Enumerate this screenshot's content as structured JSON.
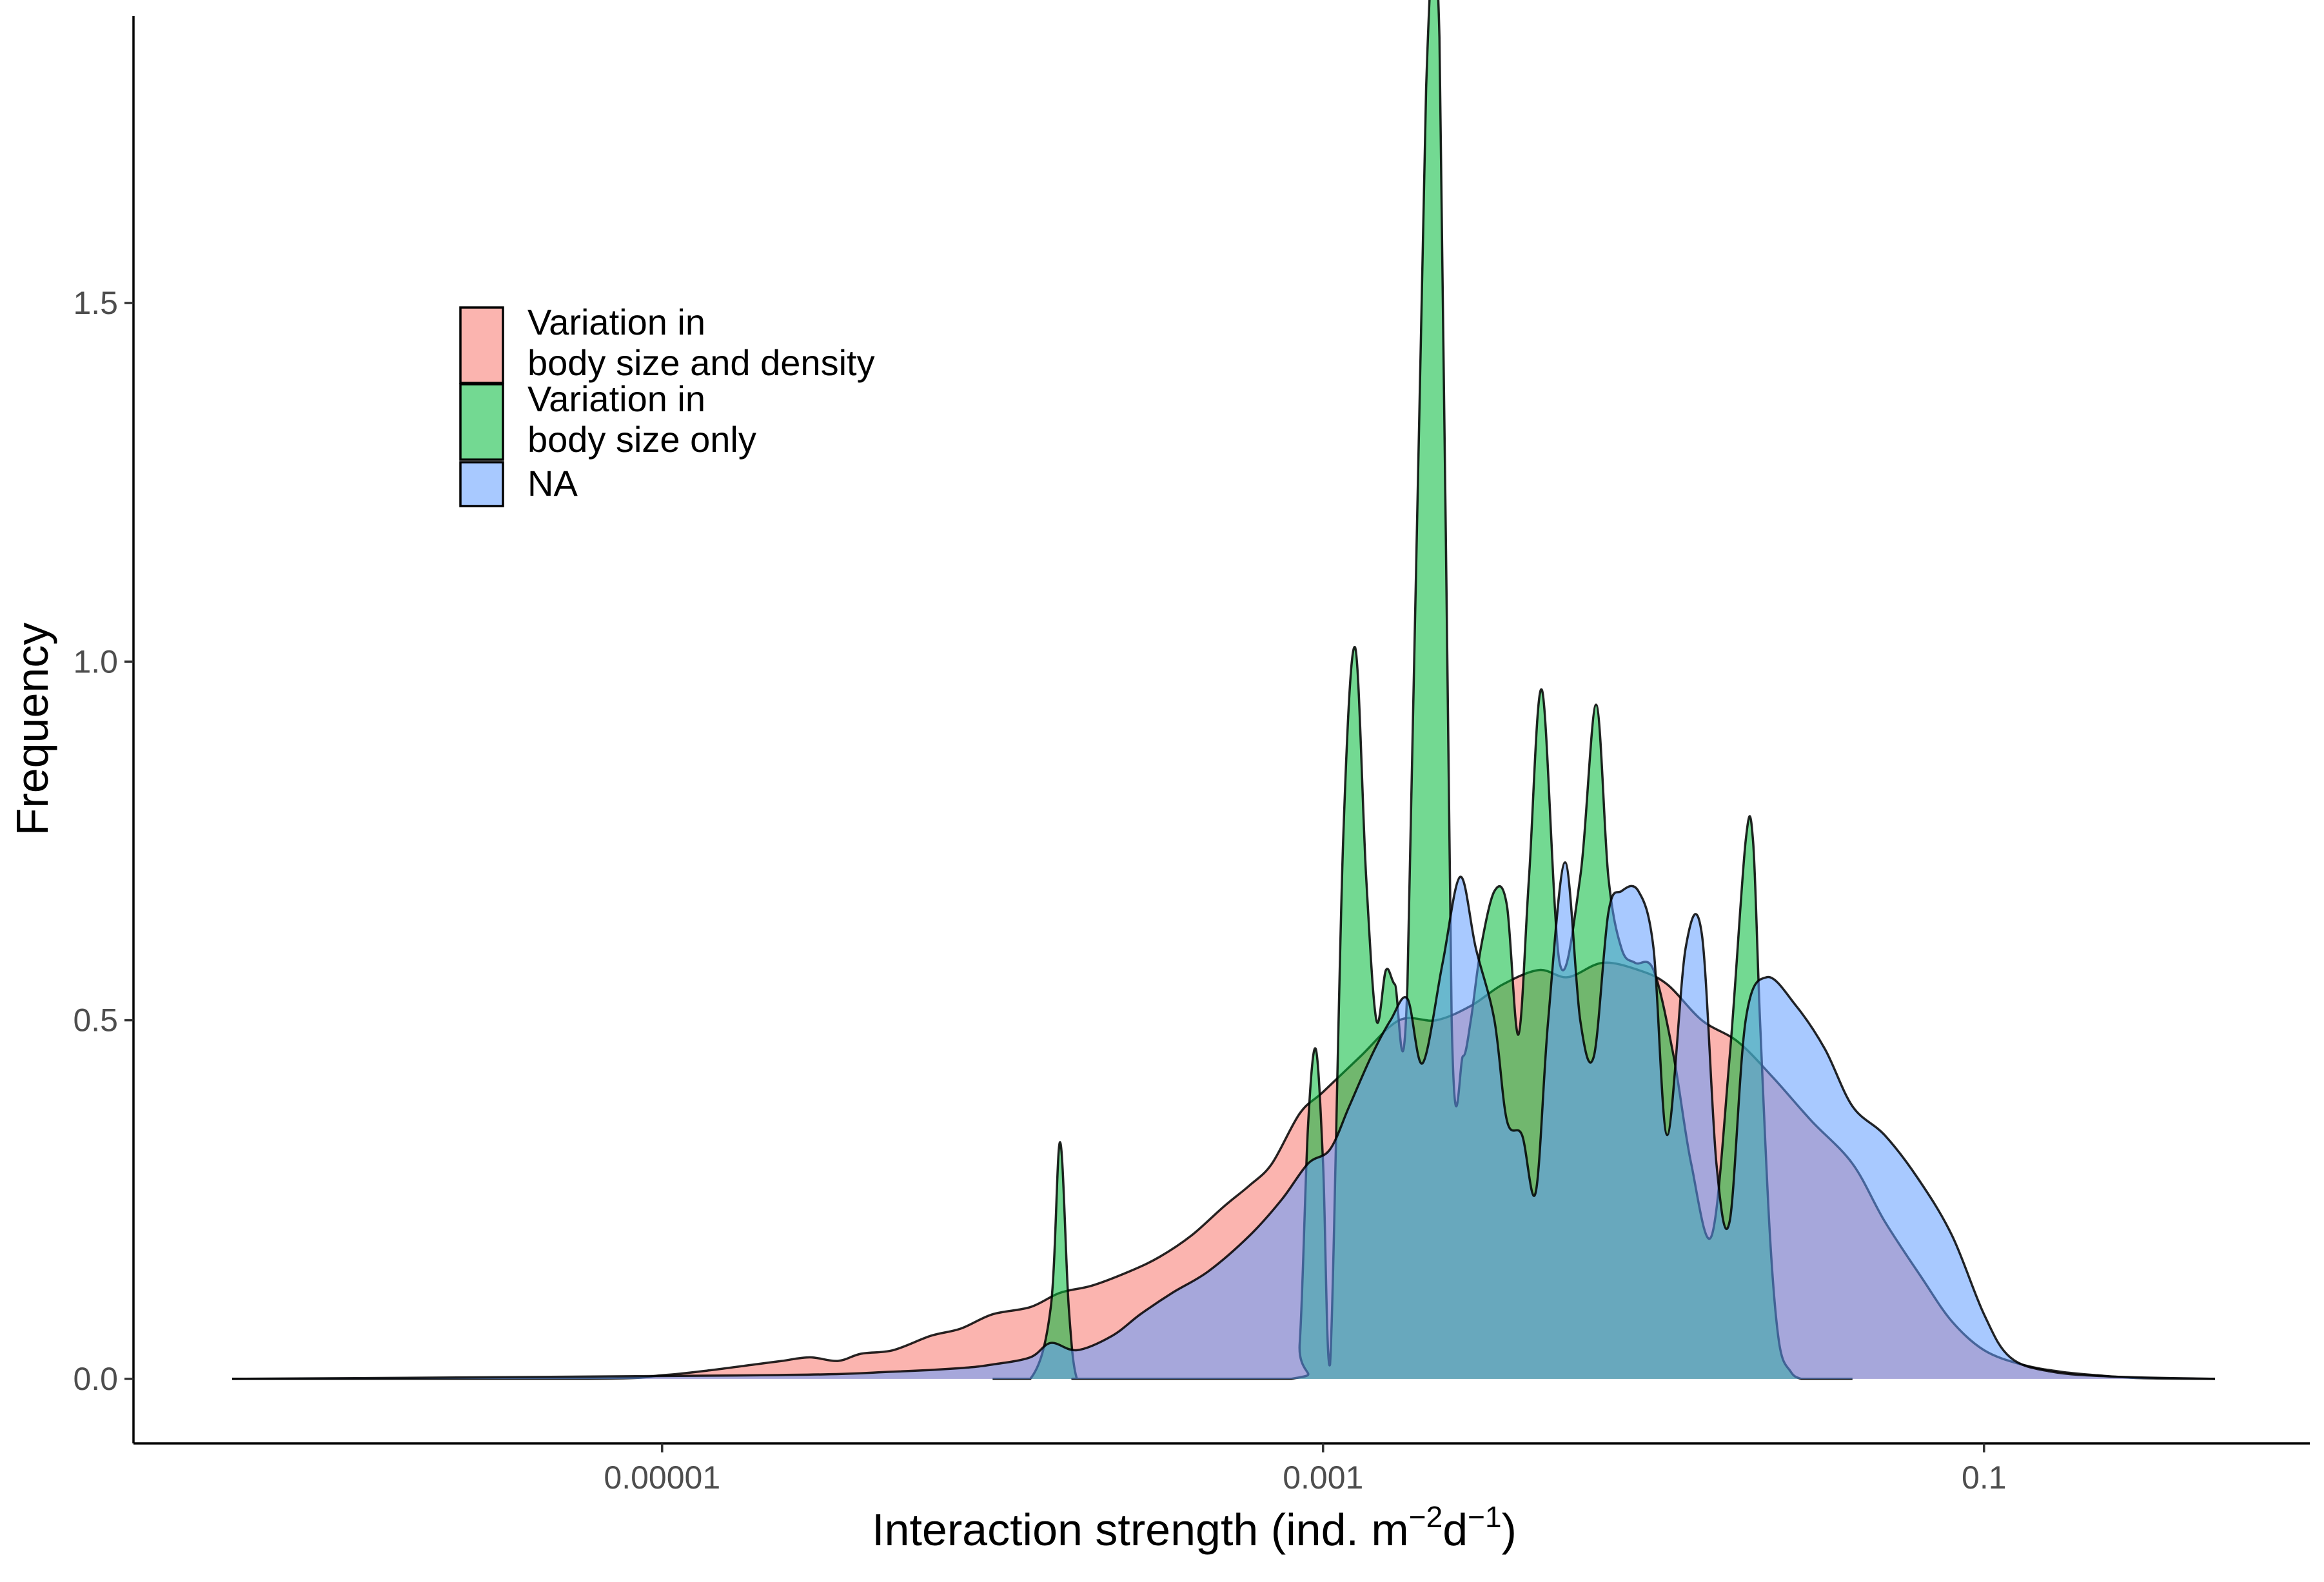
{
  "chart_data": {
    "type": "area",
    "title": "",
    "xlabel_parts": {
      "main": "Interaction strength (ind. m",
      "sup1": "−2",
      "mid": "d",
      "sup2": "−1",
      "end": ")"
    },
    "ylabel": "Frequency",
    "x_scale": "log10",
    "xlim": [
      5e-07,
      0.5
    ],
    "ylim": [
      -0.09,
      1.9
    ],
    "x_ticks": [
      {
        "value": 1e-05,
        "label": "0.00001"
      },
      {
        "value": 0.001,
        "label": "0.001"
      },
      {
        "value": 0.1,
        "label": "0.1"
      }
    ],
    "y_ticks": [
      {
        "value": 0.0,
        "label": "0.0"
      },
      {
        "value": 0.5,
        "label": "0.5"
      },
      {
        "value": 1.0,
        "label": "1.0"
      },
      {
        "value": 1.5,
        "label": "1.5"
      }
    ],
    "grid": false,
    "legend_position": "top-left",
    "series": [
      {
        "name_lines": [
          "Variation in",
          "body size and density"
        ],
        "color": "#F8766D",
        "x": [
          5e-07,
          6e-06,
          1e-05,
          1.4e-05,
          1.9e-05,
          2.3e-05,
          2.8e-05,
          3.4e-05,
          4e-05,
          5e-05,
          6.5e-05,
          8e-05,
          0.0001,
          0.00013,
          0.00016,
          0.0002,
          0.00026,
          0.00032,
          0.0004,
          0.0005,
          0.0006,
          0.0007,
          0.00085,
          0.001,
          0.0013,
          0.0017,
          0.0022,
          0.0028,
          0.0035,
          0.0045,
          0.0055,
          0.007,
          0.009,
          0.011,
          0.014,
          0.018,
          0.023,
          0.03,
          0.04,
          0.05,
          0.065,
          0.08,
          0.1,
          0.13,
          0.17,
          0.22,
          0.3,
          0.5
        ],
        "y": [
          0,
          0,
          0.005,
          0.012,
          0.02,
          0.025,
          0.03,
          0.025,
          0.035,
          0.04,
          0.06,
          0.07,
          0.09,
          0.1,
          0.12,
          0.13,
          0.15,
          0.17,
          0.2,
          0.24,
          0.27,
          0.3,
          0.37,
          0.4,
          0.45,
          0.5,
          0.5,
          0.52,
          0.55,
          0.57,
          0.56,
          0.58,
          0.57,
          0.55,
          0.5,
          0.47,
          0.42,
          0.36,
          0.3,
          0.22,
          0.14,
          0.08,
          0.04,
          0.02,
          0.01,
          0.005,
          0.001,
          0
        ]
      },
      {
        "name_lines": [
          "Variation in",
          "body size only"
        ],
        "color": "#00BA38",
        "x": [
          0.0001,
          0.00013,
          0.00015,
          0.00016,
          0.00017,
          0.00018,
          0.0002,
          0.0008,
          0.00085,
          0.0009,
          0.00095,
          0.001,
          0.00105,
          0.00115,
          0.00125,
          0.00135,
          0.00145,
          0.00155,
          0.00165,
          0.0018,
          0.00205,
          0.00225,
          0.00245,
          0.00265,
          0.0028,
          0.003,
          0.0033,
          0.0036,
          0.0039,
          0.0042,
          0.0046,
          0.0052,
          0.006,
          0.0067,
          0.0073,
          0.008,
          0.0088,
          0.01,
          0.0115,
          0.013,
          0.015,
          0.017,
          0.019,
          0.02,
          0.021,
          0.0225,
          0.024,
          0.026,
          0.028,
          0.03,
          0.032,
          0.036,
          0.04
        ],
        "y": [
          0,
          0,
          0.1,
          0.33,
          0.1,
          0,
          0,
          0,
          0.05,
          0.35,
          0.46,
          0.3,
          0.02,
          0.75,
          1.02,
          0.7,
          0.5,
          0.57,
          0.55,
          0.55,
          1.8,
          1.87,
          0.5,
          0.45,
          0.5,
          0.6,
          0.68,
          0.66,
          0.48,
          0.7,
          0.96,
          0.58,
          0.7,
          0.94,
          0.7,
          0.6,
          0.58,
          0.57,
          0.45,
          0.3,
          0.2,
          0.45,
          0.75,
          0.75,
          0.5,
          0.2,
          0.05,
          0.01,
          0,
          0,
          0,
          0,
          0
        ]
      },
      {
        "name": "NA",
        "color": "#619CFF",
        "x": [
          5e-07,
          2e-05,
          5e-05,
          8e-05,
          0.0001,
          0.00013,
          0.00015,
          0.00018,
          0.00023,
          0.00028,
          0.00035,
          0.00045,
          0.0006,
          0.00075,
          0.0009,
          0.00105,
          0.0012,
          0.0014,
          0.0016,
          0.0018,
          0.002,
          0.0023,
          0.0026,
          0.0029,
          0.0033,
          0.0036,
          0.004,
          0.0044,
          0.0048,
          0.0054,
          0.006,
          0.0066,
          0.0073,
          0.008,
          0.009,
          0.01,
          0.011,
          0.0125,
          0.014,
          0.0155,
          0.017,
          0.019,
          0.022,
          0.027,
          0.033,
          0.04,
          0.05,
          0.063,
          0.08,
          0.1,
          0.12,
          0.16,
          0.25,
          0.5
        ],
        "y": [
          0,
          0.005,
          0.01,
          0.015,
          0.02,
          0.03,
          0.05,
          0.04,
          0.06,
          0.09,
          0.12,
          0.15,
          0.2,
          0.25,
          0.3,
          0.32,
          0.38,
          0.45,
          0.5,
          0.53,
          0.44,
          0.58,
          0.7,
          0.6,
          0.5,
          0.36,
          0.34,
          0.26,
          0.5,
          0.72,
          0.5,
          0.45,
          0.65,
          0.68,
          0.68,
          0.6,
          0.34,
          0.6,
          0.62,
          0.3,
          0.22,
          0.5,
          0.56,
          0.52,
          0.46,
          0.38,
          0.34,
          0.28,
          0.2,
          0.09,
          0.03,
          0.01,
          0.003,
          0
        ]
      }
    ]
  }
}
